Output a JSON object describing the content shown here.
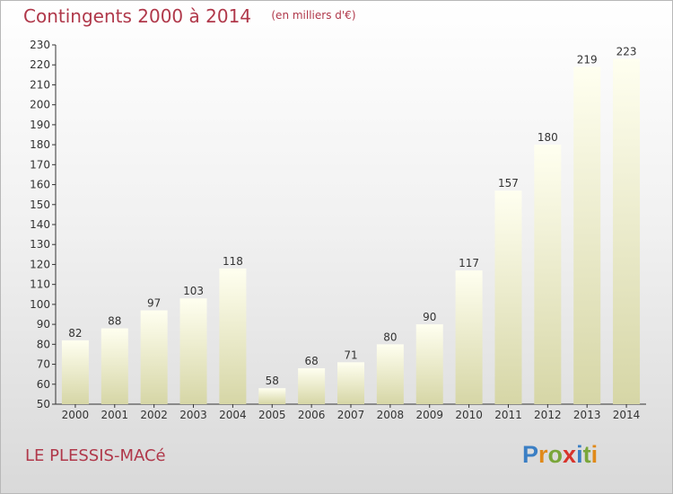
{
  "header": {
    "title": "Contingents 2000 à 2014",
    "unit": "(en milliers d'€)"
  },
  "footer": {
    "place": "LE PLESSIS-MACé",
    "brand": "Proxiti"
  },
  "colors": {
    "title": "#b0384a",
    "bar_top": "#fffff0",
    "bar_bottom": "#d6d6a6"
  },
  "chart_data": {
    "type": "bar",
    "categories": [
      "2000",
      "2001",
      "2002",
      "2003",
      "2004",
      "2005",
      "2006",
      "2007",
      "2008",
      "2009",
      "2010",
      "2011",
      "2012",
      "2013",
      "2014"
    ],
    "values": [
      82,
      88,
      97,
      103,
      118,
      58,
      68,
      71,
      80,
      90,
      117,
      157,
      180,
      219,
      223
    ],
    "ylim": [
      50,
      230
    ],
    "yticks": [
      50,
      60,
      70,
      80,
      90,
      100,
      110,
      120,
      130,
      140,
      150,
      160,
      170,
      180,
      190,
      200,
      210,
      220,
      230
    ],
    "grid": false,
    "xlabel": "",
    "ylabel": ""
  }
}
